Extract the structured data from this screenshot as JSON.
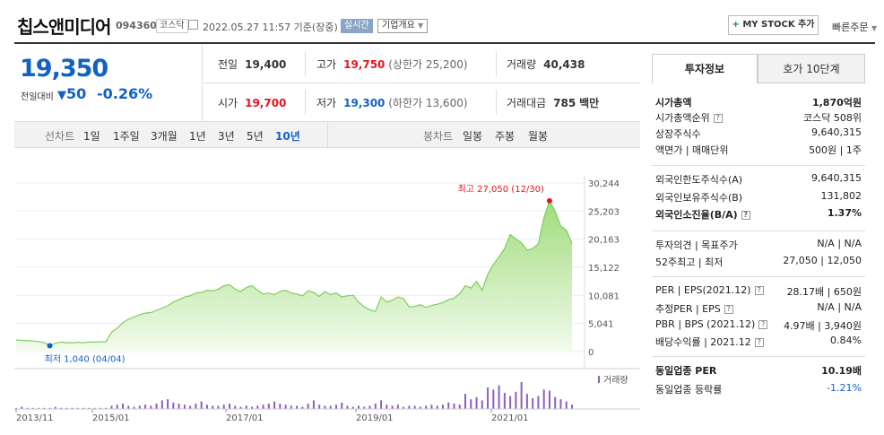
{
  "header": {
    "name": "칩스앤미디어",
    "code": "094360",
    "market": "코스닥",
    "datetime": "2022.05.27 11:57 기준(장중)",
    "realtime": "실시간",
    "overview": "기업개요",
    "mystock": "MY STOCK 추가",
    "quick_order": "빠른주문"
  },
  "quote": {
    "price": "19,350",
    "prev_label": "전일대비",
    "change": "50",
    "change_pct": "-0.26%",
    "prev_close_label": "전일",
    "prev_close": "19,400",
    "high_label": "고가",
    "high": "19,750",
    "upper_limit": "(상한가 25,200)",
    "volume_label": "거래량",
    "volume": "40,438",
    "open_label": "시가",
    "open": "19,700",
    "low_label": "저가",
    "low": "19,300",
    "lower_limit": "(하한가 13,600)",
    "amount_label": "거래대금",
    "amount": "785",
    "amount_unit": "백만"
  },
  "periods": {
    "line_label": "선차트",
    "items": [
      "1일",
      "1주일",
      "3개월",
      "1년",
      "3년",
      "5년",
      "10년"
    ],
    "active": "10년",
    "candle_label": "봉차트",
    "candles": [
      "일봉",
      "주봉",
      "월봉"
    ]
  },
  "chart_data": {
    "type": "area",
    "x_ticks": [
      "2013/11",
      "2015/01",
      "2017/01",
      "2019/01",
      "2021/01"
    ],
    "y_ticks": [
      "30,244",
      "25,203",
      "20,163",
      "15,122",
      "10,081",
      "5,041",
      "0"
    ],
    "ylim": [
      0,
      30244
    ],
    "max_label": "최고 27,050 (12/30)",
    "min_label": "최저 1,040 (04/04)",
    "volume_legend": "거래량",
    "series": [
      {
        "values": [
          2100,
          2000,
          1950,
          1900,
          1800,
          1600,
          1040,
          1500,
          1700,
          1600,
          1600,
          1650,
          1600,
          1700,
          1700,
          1750,
          1750,
          3500,
          4200,
          5200,
          5800,
          6200,
          6600,
          6900,
          7000,
          7400,
          7800,
          8200,
          8900,
          9300,
          9800,
          10000,
          10500,
          10600,
          11000,
          10900,
          11200,
          11800,
          12000,
          11200,
          10800,
          11500,
          11800,
          11000,
          10300,
          10500,
          10200,
          10800,
          11000,
          10500,
          10300,
          10000,
          10900,
          10600,
          9900,
          10800,
          10200,
          10500,
          9800,
          10000,
          10100,
          8900,
          8000,
          7500,
          7200,
          9800,
          8900,
          9200,
          9800,
          9500,
          8000,
          8100,
          8400,
          7900,
          8300,
          8500,
          8800,
          9300,
          9600,
          10400,
          11800,
          11400,
          12600,
          11000,
          13900,
          15600,
          17000,
          18500,
          21000,
          20200,
          19500,
          18200,
          18500,
          19300,
          24000,
          27050,
          25200,
          22500,
          21800,
          19350
        ]
      }
    ],
    "volume_bars": [
      1,
      2,
      1,
      1,
      1,
      1,
      1,
      2,
      1,
      1,
      1,
      1,
      1,
      1,
      1,
      1,
      1,
      3,
      4,
      5,
      3,
      2,
      3,
      4,
      3,
      5,
      8,
      9,
      6,
      5,
      4,
      3,
      5,
      7,
      4,
      3,
      3,
      4,
      5,
      3,
      2,
      3,
      2,
      3,
      4,
      5,
      7,
      5,
      4,
      3,
      3,
      2,
      5,
      8,
      4,
      3,
      3,
      4,
      6,
      3,
      2,
      3,
      2,
      3,
      5,
      8,
      4,
      3,
      4,
      2,
      3,
      3,
      2,
      3,
      4,
      3,
      4,
      6,
      5,
      4,
      14,
      9,
      11,
      8,
      20,
      18,
      22,
      15,
      12,
      16,
      25,
      14,
      10,
      12,
      18,
      17,
      11,
      9,
      7,
      4
    ]
  },
  "info_panel": {
    "tab1": "투자정보",
    "tab2": "호가 10단계",
    "rows": [
      {
        "k": "시가총액",
        "v": "1,870억원",
        "bold": true
      },
      {
        "k": "시가총액순위",
        "v": "코스닥 508위",
        "q": true
      },
      {
        "k": "상장주식수",
        "v": "9,640,315"
      },
      {
        "k": "액면가 | 매매단위",
        "v": "500원 | 1주"
      },
      {
        "k": "외국인한도주식수(A)",
        "v": "9,640,315"
      },
      {
        "k": "외국인보유주식수(B)",
        "v": "131,802"
      },
      {
        "k": "외국인소진율(B/A)",
        "v": "1.37%",
        "bold": true,
        "q": true
      },
      {
        "k": "투자의견 | 목표주가",
        "v": "N/A | N/A"
      },
      {
        "k": "52주최고 | 최저",
        "v": "27,050 | 12,050"
      },
      {
        "k": "PER | EPS(2021.12)",
        "v": "28.17배 | 650원",
        "q": true
      },
      {
        "k": "추정PER | EPS",
        "v": "N/A | N/A",
        "q": true
      },
      {
        "k": "PBR | BPS (2021.12)",
        "v": "4.97배 | 3,940원",
        "q": true
      },
      {
        "k": "배당수익률 | 2021.12",
        "v": "0.84%",
        "q": true
      },
      {
        "k": "동일업종 PER",
        "v": "10.19배",
        "bold": true
      },
      {
        "k": "동일업종 등락률",
        "v": "-1.21%",
        "blue": true
      }
    ]
  },
  "colors": {
    "up": "#e8141e",
    "down": "#1261c4",
    "area": "#7ccf5a"
  }
}
